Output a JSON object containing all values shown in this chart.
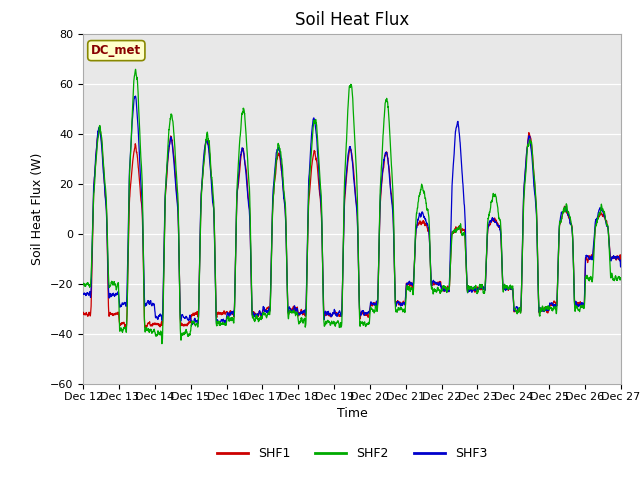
{
  "title": "Soil Heat Flux",
  "ylabel": "Soil Heat Flux (W)",
  "xlabel": "Time",
  "ylim": [
    -60,
    80
  ],
  "yticks": [
    -60,
    -40,
    -20,
    0,
    20,
    40,
    60,
    80
  ],
  "line_colors": {
    "SHF1": "#cc0000",
    "SHF2": "#00aa00",
    "SHF3": "#0000cc"
  },
  "legend_label": "DC_met",
  "legend_box_facecolor": "#ffffcc",
  "legend_box_edgecolor": "#888800",
  "bg_color": "#e8e8e8",
  "title_fontsize": 12,
  "axis_fontsize": 9,
  "tick_fontsize": 8,
  "n_points": 3601,
  "x_start_day": 12,
  "x_end_day": 27,
  "xtick_labels": [
    "Dec 12",
    "Dec 13",
    "Dec 14",
    "Dec 15",
    "Dec 16",
    "Dec 17",
    "Dec 18",
    "Dec 19",
    "Dec 20",
    "Dec 21",
    "Dec 22",
    "Dec 23",
    "Dec 24",
    "Dec 25",
    "Dec 26",
    "Dec 27"
  ],
  "xtick_days": [
    12,
    13,
    14,
    15,
    16,
    17,
    18,
    19,
    20,
    21,
    22,
    23,
    24,
    25,
    26,
    27
  ]
}
